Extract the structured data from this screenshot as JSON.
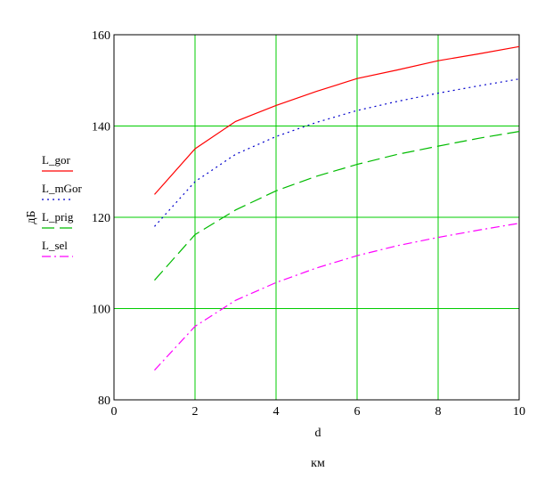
{
  "chart_data": {
    "type": "line",
    "xlabel": "d",
    "xunit": "км",
    "ylabel": "дБ",
    "xlim": [
      0,
      10
    ],
    "ylim": [
      80,
      160
    ],
    "xticks": [
      0,
      2,
      4,
      6,
      8,
      10
    ],
    "yticks": [
      80,
      100,
      120,
      140,
      160
    ],
    "grid": true,
    "grid_color": "#00cc00",
    "legend_position": "left",
    "x": [
      1,
      2,
      3,
      4,
      5,
      6,
      7,
      8,
      9,
      10
    ],
    "series": [
      {
        "name": "L_gor",
        "color": "#ff0000",
        "style": "solid",
        "values": [
          125.0,
          135.0,
          141.0,
          144.5,
          147.6,
          150.4,
          152.3,
          154.3,
          155.8,
          157.4
        ]
      },
      {
        "name": "L_mGor",
        "color": "#0000cc",
        "style": "dotted",
        "values": [
          118.0,
          127.8,
          133.8,
          137.7,
          140.8,
          143.4,
          145.4,
          147.2,
          148.8,
          150.3
        ]
      },
      {
        "name": "L_prig",
        "color": "#00bb00",
        "style": "dashed",
        "values": [
          106.2,
          116.2,
          121.6,
          125.8,
          129.0,
          131.6,
          133.8,
          135.6,
          137.3,
          138.8
        ]
      },
      {
        "name": "L_sel",
        "color": "#ff00ff",
        "style": "dashdot",
        "values": [
          86.5,
          96.1,
          101.8,
          105.7,
          108.9,
          111.6,
          113.8,
          115.6,
          117.2,
          118.7
        ]
      }
    ]
  }
}
